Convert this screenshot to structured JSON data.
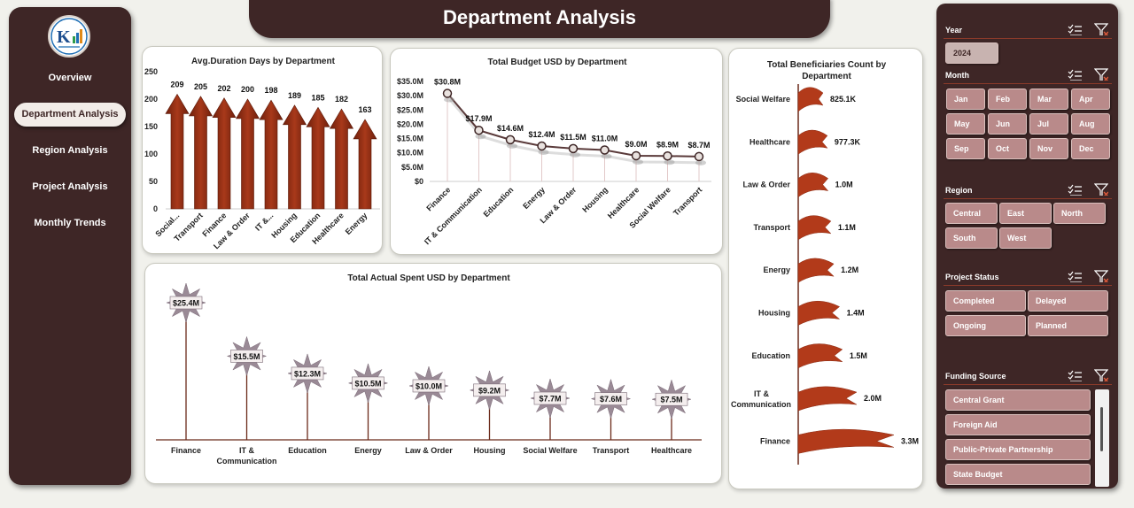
{
  "title": "Department Analysis",
  "nav": {
    "items": [
      {
        "label": "Overview",
        "active": false
      },
      {
        "label": "Department Analysis",
        "active": true
      },
      {
        "label": "Region Analysis",
        "active": false
      },
      {
        "label": "Project Analysis",
        "active": false
      },
      {
        "label": "Monthly Trends",
        "active": false
      }
    ]
  },
  "colors": {
    "brand_dark": "#3e2626",
    "arrow": "#8b2d14",
    "flag": "#b23a1a",
    "star": "#9a8a96",
    "slicer_button": "#b98a8a"
  },
  "charts": [
    {
      "id": "avg_duration",
      "type": "bar",
      "title": "Avg.Duration Days by Department",
      "categories": [
        "Social...",
        "Transport",
        "Finance",
        "Law & Order",
        "IT &...",
        "Housing",
        "Education",
        "Healthcare",
        "Energy"
      ],
      "values": [
        209,
        205,
        202,
        200,
        198,
        189,
        185,
        182,
        163
      ],
      "value_labels": [
        "209",
        "205",
        "202",
        "200",
        "198",
        "189",
        "185",
        "182",
        "163"
      ],
      "yticks": [
        "0",
        "50",
        "100",
        "150",
        "200",
        "250"
      ],
      "ylim": [
        0,
        250
      ]
    },
    {
      "id": "total_budget",
      "type": "line",
      "title": "Total Budget USD by Department",
      "categories": [
        "Finance",
        "IT & Communication",
        "Education",
        "Energy",
        "Law & Order",
        "Housing",
        "Healthcare",
        "Social Welfare",
        "Transport"
      ],
      "values": [
        30.8,
        17.9,
        14.6,
        12.4,
        11.5,
        11.0,
        9.0,
        8.9,
        8.7
      ],
      "value_labels": [
        "$30.8M",
        "$17.9M",
        "$14.6M",
        "$12.4M",
        "$11.5M",
        "$11.0M",
        "$9.0M",
        "$8.9M",
        "$8.7M"
      ],
      "yticks": [
        "$0",
        "$5.0M",
        "$10.0M",
        "$15.0M",
        "$20.0M",
        "$25.0M",
        "$30.0M",
        "$35.0M"
      ],
      "ylim": [
        0,
        35
      ]
    },
    {
      "id": "beneficiaries",
      "type": "bar",
      "title": "Total Beneficiaries Count by Department",
      "categories": [
        "Social Welfare",
        "Healthcare",
        "Law & Order",
        "Transport",
        "Energy",
        "Housing",
        "Education",
        "IT & Communication",
        "Finance"
      ],
      "values": [
        825.1,
        977.3,
        1000,
        1100,
        1200,
        1400,
        1500,
        2000,
        3300
      ],
      "value_labels": [
        "825.1K",
        "977.3K",
        "1.0M",
        "1.1M",
        "1.2M",
        "1.4M",
        "1.5M",
        "2.0M",
        "3.3M"
      ],
      "unit": "thousands"
    },
    {
      "id": "actual_spent",
      "type": "bar",
      "title": "Total Actual Spent USD by Department",
      "categories": [
        "Finance",
        "IT & Communication",
        "Education",
        "Energy",
        "Law & Order",
        "Housing",
        "Social Welfare",
        "Transport",
        "Healthcare"
      ],
      "values": [
        25.4,
        15.5,
        12.3,
        10.5,
        10.0,
        9.2,
        7.7,
        7.6,
        7.5
      ],
      "value_labels": [
        "$25.4M",
        "$15.5M",
        "$12.3M",
        "$10.5M",
        "$10.0M",
        "$9.2M",
        "$7.7M",
        "$7.6M",
        "$7.5M"
      ]
    }
  ],
  "chart_data": [
    {
      "type": "bar",
      "title": "Avg.Duration Days by Department",
      "categories": [
        "Social...",
        "Transport",
        "Finance",
        "Law & Order",
        "IT &...",
        "Housing",
        "Education",
        "Healthcare",
        "Energy"
      ],
      "values": [
        209,
        205,
        202,
        200,
        198,
        189,
        185,
        182,
        163
      ],
      "ylim": [
        0,
        250
      ]
    },
    {
      "type": "line",
      "title": "Total Budget USD by Department",
      "categories": [
        "Finance",
        "IT & Communication",
        "Education",
        "Energy",
        "Law & Order",
        "Housing",
        "Healthcare",
        "Social Welfare",
        "Transport"
      ],
      "values": [
        30.8,
        17.9,
        14.6,
        12.4,
        11.5,
        11.0,
        9.0,
        8.9,
        8.7
      ],
      "ylim": [
        0,
        35
      ]
    },
    {
      "type": "bar",
      "title": "Total Beneficiaries Count by Department",
      "categories": [
        "Social Welfare",
        "Healthcare",
        "Law & Order",
        "Transport",
        "Energy",
        "Housing",
        "Education",
        "IT & Communication",
        "Finance"
      ],
      "values": [
        825100,
        977300,
        1000000,
        1100000,
        1200000,
        1400000,
        1500000,
        2000000,
        3300000
      ]
    },
    {
      "type": "bar",
      "title": "Total Actual Spent USD by Department",
      "categories": [
        "Finance",
        "IT & Communication",
        "Education",
        "Energy",
        "Law & Order",
        "Housing",
        "Social Welfare",
        "Transport",
        "Healthcare"
      ],
      "values": [
        25.4,
        15.5,
        12.3,
        10.5,
        10.0,
        9.2,
        7.7,
        7.6,
        7.5
      ]
    }
  ],
  "slicers": {
    "year": {
      "title": "Year",
      "items": [
        "2024"
      ]
    },
    "month": {
      "title": "Month",
      "items": [
        "Jan",
        "Feb",
        "Mar",
        "Apr",
        "May",
        "Jun",
        "Jul",
        "Aug",
        "Sep",
        "Oct",
        "Nov",
        "Dec"
      ]
    },
    "region": {
      "title": "Region",
      "items": [
        "Central",
        "East",
        "North",
        "South",
        "West"
      ]
    },
    "status": {
      "title": "Project Status",
      "items": [
        "Completed",
        "Delayed",
        "Ongoing",
        "Planned"
      ]
    },
    "funding": {
      "title": "Funding Source",
      "items": [
        "Central Grant",
        "Foreign Aid",
        "Public-Private Partnership",
        "State Budget"
      ]
    }
  }
}
